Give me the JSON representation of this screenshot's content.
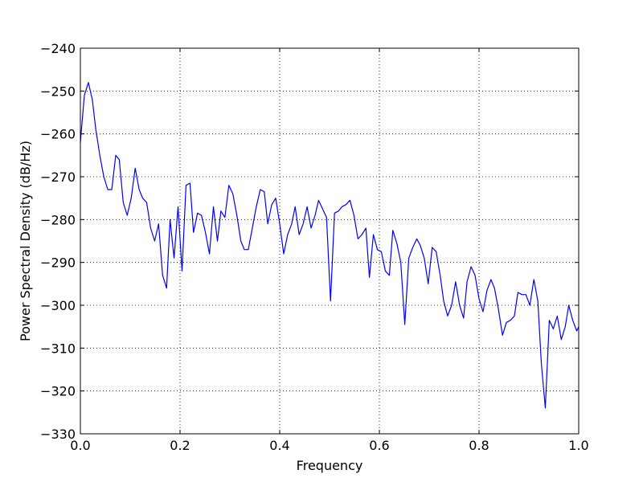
{
  "chart_data": {
    "type": "line",
    "title": "",
    "xlabel": "Frequency",
    "ylabel": "Power Spectral Density (dB/Hz)",
    "xlim": [
      0.0,
      1.0
    ],
    "ylim": [
      -330,
      -240
    ],
    "grid": true,
    "line_color": "#0000ff",
    "x_ticks": [
      0.0,
      0.2,
      0.4,
      0.6,
      0.8,
      1.0
    ],
    "x_tick_labels": [
      "0.0",
      "0.2",
      "0.4",
      "0.6",
      "0.8",
      "1.0"
    ],
    "y_ticks": [
      -330,
      -320,
      -310,
      -300,
      -290,
      -280,
      -270,
      -260,
      -250,
      -240
    ],
    "y_tick_labels": [
      "−330",
      "−320",
      "−310",
      "−300",
      "−290",
      "−280",
      "−270",
      "−260",
      "−250",
      "−240"
    ],
    "series": [
      {
        "x": [
          0.0,
          0.008,
          0.016,
          0.024,
          0.031,
          0.039,
          0.047,
          0.055,
          0.063,
          0.071,
          0.078,
          0.086,
          0.094,
          0.102,
          0.11,
          0.118,
          0.125,
          0.133,
          0.141,
          0.149,
          0.157,
          0.165,
          0.173,
          0.18,
          0.188,
          0.196,
          0.204,
          0.212,
          0.22,
          0.227,
          0.235,
          0.243,
          0.251,
          0.259,
          0.267,
          0.275,
          0.282,
          0.29,
          0.298,
          0.306,
          0.314,
          0.322,
          0.329,
          0.337,
          0.345,
          0.353,
          0.361,
          0.369,
          0.376,
          0.384,
          0.392,
          0.4,
          0.408,
          0.416,
          0.424,
          0.431,
          0.439,
          0.447,
          0.455,
          0.463,
          0.471,
          0.478,
          0.486,
          0.494,
          0.502,
          0.51,
          0.518,
          0.525,
          0.533,
          0.541,
          0.549,
          0.557,
          0.565,
          0.573,
          0.58,
          0.588,
          0.596,
          0.604,
          0.612,
          0.62,
          0.627,
          0.635,
          0.643,
          0.651,
          0.659,
          0.667,
          0.675,
          0.682,
          0.69,
          0.698,
          0.706,
          0.714,
          0.722,
          0.729,
          0.737,
          0.745,
          0.753,
          0.761,
          0.769,
          0.776,
          0.784,
          0.792,
          0.8,
          0.808,
          0.816,
          0.824,
          0.831,
          0.839,
          0.847,
          0.855,
          0.863,
          0.871,
          0.878,
          0.886,
          0.894,
          0.902,
          0.91,
          0.918,
          0.925,
          0.933,
          0.941,
          0.949,
          0.957,
          0.965,
          0.973,
          0.98,
          0.988,
          0.996,
          1.0
        ],
        "y": [
          -262,
          -251,
          -248,
          -252,
          -259,
          -265,
          -270,
          -273,
          -273,
          -265,
          -266,
          -276,
          -279,
          -275,
          -268,
          -273,
          -275,
          -276,
          -282,
          -285,
          -281,
          -293,
          -296,
          -280,
          -289,
          -277,
          -292,
          -272,
          -271.5,
          -283,
          -278.5,
          -279,
          -283,
          -288,
          -277,
          -285,
          -278,
          -279.5,
          -272,
          -274,
          -279,
          -285,
          -287,
          -287,
          -282,
          -277,
          -273,
          -273.5,
          -281,
          -276.5,
          -275,
          -281,
          -288,
          -283.5,
          -281,
          -277,
          -283.5,
          -281,
          -277,
          -282,
          -279,
          -275.5,
          -277.5,
          -279.5,
          -299,
          -278.5,
          -278,
          -277,
          -276.5,
          -275.5,
          -279,
          -284.5,
          -283.5,
          -282,
          -293.5,
          -283.5,
          -287,
          -287.5,
          -292,
          -293,
          -282.5,
          -285.5,
          -290,
          -304.5,
          -289,
          -286.5,
          -284.5,
          -286,
          -289,
          -295,
          -286.5,
          -287.5,
          -293,
          -299,
          -302.5,
          -300,
          -294.5,
          -300,
          -303,
          -294.5,
          -291,
          -293,
          -298.5,
          -301.5,
          -296.5,
          -294,
          -296,
          -301,
          -307,
          -304,
          -303.5,
          -302.5,
          -297,
          -297.5,
          -297.5,
          -300,
          -294,
          -299,
          -313.5,
          -324,
          -303.5,
          -305.5,
          -302.5,
          -308,
          -305,
          -300,
          -303.5,
          -306,
          -305
        ]
      }
    ]
  }
}
